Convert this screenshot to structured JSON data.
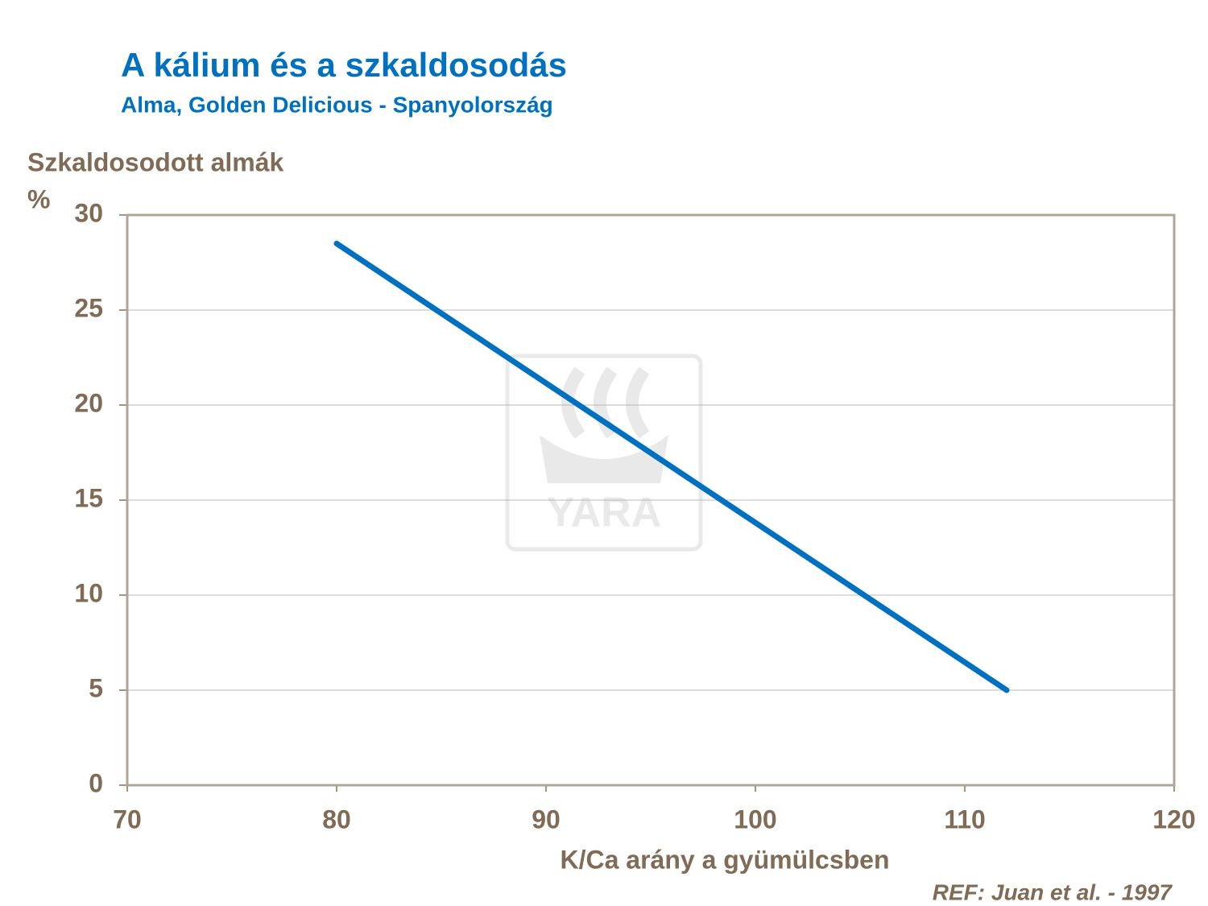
{
  "chart_data": {
    "type": "line",
    "title": "A kálium és a szkaldosodás",
    "subtitle": "Alma, Golden Delicious  - Spanyolország",
    "y_label": [
      "Szkaldosodott almák",
      "%"
    ],
    "x_label": "K/Ca arány a gyümülcsben",
    "annotation": "REF: Juan et al. - 1997",
    "watermark": "YARA",
    "x": [
      80,
      112
    ],
    "values": [
      28.5,
      5
    ],
    "color": "#0070c0",
    "xlim": [
      70,
      120
    ],
    "xticks": [
      70,
      80,
      90,
      100,
      110,
      120
    ],
    "ylim": [
      0,
      30
    ],
    "yticks": [
      0,
      5,
      10,
      15,
      20,
      25,
      30
    ],
    "grid": true
  }
}
